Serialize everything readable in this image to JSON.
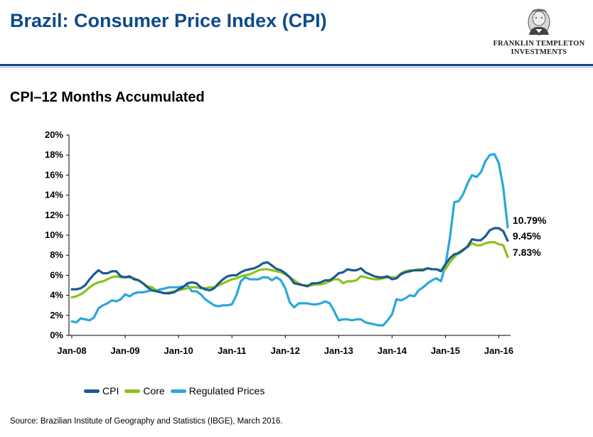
{
  "header": {
    "title": "Brazil: Consumer Price Index (CPI)",
    "logo_line1": "FRANKLIN TEMPLETON",
    "logo_line2": "INVESTMENTS"
  },
  "chart_title": "CPI–12 Months Accumulated",
  "source": "Source: Brazilian Institute of Geography and Statistics (IBGE), March 2016.",
  "colors": {
    "brand_blue": "#0d4a8a",
    "cpi": "#1a5a92",
    "core": "#8bc21a",
    "regulated": "#2aa7dc"
  },
  "chart_data": {
    "type": "line",
    "x_start": "Jan-08",
    "x_end": "Feb-16",
    "x_ticks": [
      "Jan-08",
      "Jan-09",
      "Jan-10",
      "Jan-11",
      "Jan-12",
      "Jan-13",
      "Jan-14",
      "Jan-15",
      "Jan-16"
    ],
    "y_ticks": [
      "0%",
      "2%",
      "4%",
      "6%",
      "8%",
      "10%",
      "12%",
      "14%",
      "16%",
      "18%",
      "20%"
    ],
    "ylim": [
      0,
      20
    ],
    "grid": false,
    "legend_position": "bottom-left",
    "end_labels": [
      "10.79%",
      "9.45%",
      "7.83%"
    ],
    "series": [
      {
        "name": "CPI",
        "values": [
          4.6,
          4.6,
          4.7,
          5.0,
          5.6,
          6.1,
          6.5,
          6.2,
          6.2,
          6.4,
          6.4,
          5.9,
          5.8,
          5.9,
          5.6,
          5.5,
          5.2,
          4.8,
          4.5,
          4.4,
          4.3,
          4.2,
          4.2,
          4.3,
          4.6,
          4.8,
          5.2,
          5.3,
          5.2,
          4.8,
          4.6,
          4.5,
          4.7,
          5.2,
          5.6,
          5.9,
          6.0,
          6.0,
          6.3,
          6.5,
          6.6,
          6.7,
          6.9,
          7.2,
          7.3,
          6.97,
          6.64,
          6.5,
          6.2,
          5.8,
          5.2,
          5.1,
          5.0,
          4.9,
          5.2,
          5.2,
          5.3,
          5.5,
          5.5,
          5.8,
          6.2,
          6.3,
          6.6,
          6.5,
          6.5,
          6.7,
          6.3,
          6.1,
          5.9,
          5.8,
          5.8,
          5.9,
          5.6,
          5.7,
          6.1,
          6.3,
          6.4,
          6.5,
          6.5,
          6.5,
          6.7,
          6.6,
          6.6,
          6.4,
          7.1,
          7.7,
          8.1,
          8.2,
          8.5,
          8.9,
          9.6,
          9.5,
          9.5,
          9.9,
          10.5,
          10.7,
          10.7,
          10.4,
          9.45
        ]
      },
      {
        "name": "Core",
        "values": [
          3.8,
          3.9,
          4.1,
          4.4,
          4.8,
          5.1,
          5.3,
          5.4,
          5.6,
          5.8,
          5.9,
          5.8,
          5.8,
          5.8,
          5.7,
          5.5,
          5.2,
          4.9,
          4.8,
          4.5,
          4.3,
          4.2,
          4.3,
          4.4,
          4.5,
          4.6,
          4.7,
          4.8,
          4.8,
          4.7,
          4.7,
          4.8,
          4.8,
          5.0,
          5.2,
          5.4,
          5.6,
          5.7,
          5.9,
          6.0,
          6.1,
          6.3,
          6.5,
          6.6,
          6.6,
          6.5,
          6.4,
          6.3,
          6.1,
          5.8,
          5.5,
          5.2,
          5.0,
          5.0,
          5.0,
          5.1,
          5.1,
          5.2,
          5.4,
          5.6,
          5.6,
          5.2,
          5.4,
          5.4,
          5.5,
          5.9,
          5.8,
          5.7,
          5.6,
          5.6,
          5.7,
          5.8,
          5.8,
          5.8,
          6.2,
          6.4,
          6.5,
          6.5,
          6.6,
          6.6,
          6.7,
          6.6,
          6.6,
          6.5,
          6.6,
          7.3,
          7.8,
          8.3,
          8.6,
          8.8,
          9.2,
          9.0,
          9.0,
          9.2,
          9.3,
          9.3,
          9.1,
          9.0,
          7.83
        ]
      },
      {
        "name": "Regulated Prices",
        "values": [
          1.4,
          1.3,
          1.7,
          1.6,
          1.5,
          1.8,
          2.7,
          3.0,
          3.2,
          3.5,
          3.4,
          3.6,
          4.1,
          3.9,
          4.2,
          4.3,
          4.3,
          4.4,
          4.5,
          4.5,
          4.6,
          4.7,
          4.8,
          4.8,
          4.8,
          4.9,
          5.0,
          4.4,
          4.4,
          4.1,
          3.6,
          3.3,
          3.0,
          2.9,
          3.0,
          3.0,
          3.1,
          4.0,
          5.4,
          5.8,
          5.6,
          5.6,
          5.6,
          5.8,
          5.8,
          5.5,
          5.8,
          5.5,
          4.7,
          3.3,
          2.8,
          3.2,
          3.2,
          3.2,
          3.1,
          3.1,
          3.2,
          3.4,
          3.2,
          2.4,
          1.5,
          1.6,
          1.6,
          1.5,
          1.6,
          1.6,
          1.3,
          1.2,
          1.1,
          1.0,
          1.0,
          1.5,
          2.1,
          3.6,
          3.5,
          3.7,
          4.0,
          3.9,
          4.5,
          4.8,
          5.2,
          5.5,
          5.7,
          5.4,
          7.0,
          9.7,
          13.3,
          13.4,
          14.1,
          15.2,
          16.0,
          15.8,
          16.3,
          17.4,
          18.0,
          18.1,
          17.2,
          14.8,
          10.79
        ]
      }
    ]
  }
}
